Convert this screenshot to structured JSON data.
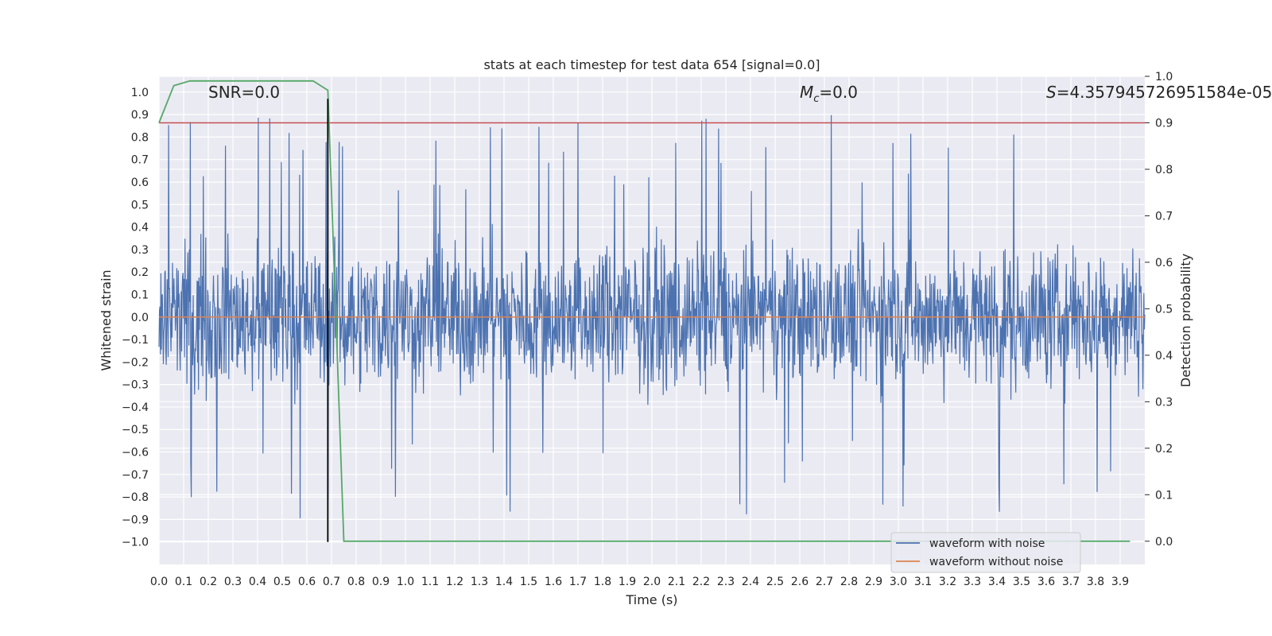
{
  "chart_data": {
    "type": "line",
    "title": "stats at each timestep for test data 654 [signal=0.0]",
    "xlabel": "Time (s)",
    "ylabel": "Whitened strain",
    "y2label": "Detection probability",
    "xlim": [
      0.0,
      4.0
    ],
    "ylim": [
      -1.1,
      1.07
    ],
    "y2lim": [
      -0.05,
      1.0
    ],
    "x_ticks": [
      "0.0",
      "0.1",
      "0.2",
      "0.3",
      "0.4",
      "0.5",
      "0.6",
      "0.7",
      "0.8",
      "0.9",
      "1.0",
      "1.1",
      "1.2",
      "1.3",
      "1.4",
      "1.5",
      "1.6",
      "1.7",
      "1.8",
      "1.9",
      "2.0",
      "2.1",
      "2.2",
      "2.3",
      "2.4",
      "2.5",
      "2.6",
      "2.7",
      "2.8",
      "2.9",
      "3.0",
      "3.1",
      "3.2",
      "3.3",
      "3.4",
      "3.5",
      "3.6",
      "3.7",
      "3.8",
      "3.9"
    ],
    "y_ticks": [
      "1.0",
      "0.9",
      "0.8",
      "0.7",
      "0.6",
      "0.5",
      "0.4",
      "0.3",
      "0.2",
      "0.1",
      "0.0",
      "-0.1",
      "-0.2",
      "-0.3",
      "-0.4",
      "-0.5",
      "-0.6",
      "-0.7",
      "-0.8",
      "-0.9",
      "-1.0"
    ],
    "y2_ticks": [
      "1.0",
      "0.9",
      "0.8",
      "0.7",
      "0.6",
      "0.5",
      "0.4",
      "0.3",
      "0.2",
      "0.1",
      "0.0"
    ],
    "annotations": {
      "snr": "SNR=0.0",
      "mc_symbol": "M",
      "mc_sub": "c",
      "mc_value": "=0.0",
      "s_symbol": "S",
      "s_value": "=4.357945726951584e-05"
    },
    "threshold": {
      "y2": 0.9,
      "color": "#c44e52"
    },
    "event_marker": {
      "x": 0.685,
      "y_range": [
        -1.0,
        0.97
      ],
      "color": "#000000"
    },
    "series": [
      {
        "name": "waveform with noise",
        "color": "#4c72b0",
        "axis": "left",
        "n_samples": 2048,
        "amplitude_range": [
          -1.0,
          0.97
        ]
      },
      {
        "name": "waveform without noise",
        "color": "#dd8452",
        "axis": "left",
        "x": [
          0.0,
          4.0
        ],
        "y": [
          0.0,
          0.0
        ]
      },
      {
        "name": "detection probability",
        "color": "#55a868",
        "axis": "right",
        "x": [
          0.0,
          0.06,
          0.125,
          0.25,
          0.375,
          0.5,
          0.625,
          0.685,
          0.75,
          1.0,
          2.0,
          3.0,
          3.94
        ],
        "y": [
          0.9,
          0.98,
          0.99,
          0.99,
          0.99,
          0.99,
          0.99,
          0.97,
          0.0,
          0.0,
          0.0,
          0.0,
          0.0
        ]
      }
    ],
    "legend": {
      "position": "bottom-right",
      "entries": [
        "waveform with noise",
        "waveform without noise"
      ]
    }
  }
}
